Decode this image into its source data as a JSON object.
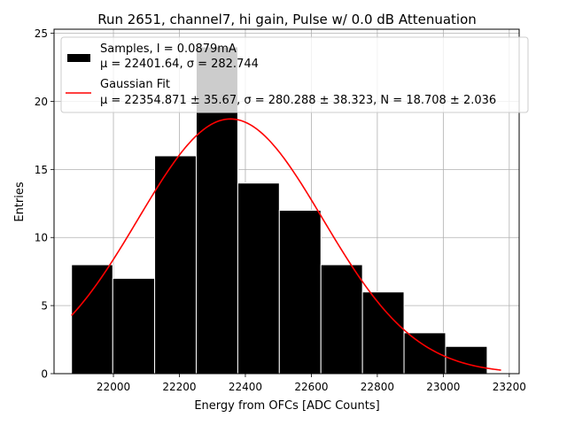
{
  "chart_data": {
    "type": "bar",
    "title": "Run 2651, channel7, hi gain, Pulse w/ 0.0 dB Attenuation",
    "xlabel": "Energy from OFCs [ADC Counts]",
    "ylabel": "Entries",
    "xlim": [
      21820,
      23230
    ],
    "ylim": [
      0,
      25.3
    ],
    "xticks": [
      22000,
      22200,
      22400,
      22600,
      22800,
      23000,
      23200
    ],
    "yticks": [
      0,
      5,
      10,
      15,
      20,
      25
    ],
    "grid": true,
    "legend_position": "top-right",
    "bins": [
      {
        "x0": 21873,
        "x1": 21998,
        "count": 8
      },
      {
        "x0": 21998,
        "x1": 22125,
        "count": 7
      },
      {
        "x0": 22125,
        "x1": 22251,
        "count": 16
      },
      {
        "x0": 22251,
        "x1": 22377,
        "count": 24
      },
      {
        "x0": 22377,
        "x1": 22503,
        "count": 14
      },
      {
        "x0": 22503,
        "x1": 22629,
        "count": 12
      },
      {
        "x0": 22629,
        "x1": 22755,
        "count": 8
      },
      {
        "x0": 22755,
        "x1": 22881,
        "count": 6
      },
      {
        "x0": 22881,
        "x1": 23007,
        "count": 3
      },
      {
        "x0": 23007,
        "x1": 23133,
        "count": 2
      }
    ],
    "fit": {
      "mu": 22354.871,
      "sigma": 280.288,
      "amplitude": 18.708,
      "x_start": 21873,
      "x_end": 23175
    },
    "series": [
      {
        "name": "Samples, I = 0.0879mA",
        "stats": "μ = 22401.64, σ = 282.744",
        "color": "#000000"
      },
      {
        "name": "Gaussian Fit",
        "stats": "μ = 22354.871 ± 35.67, σ = 280.288 ± 38.323, N = 18.708 ± 2.036",
        "color": "#ff0000"
      }
    ]
  }
}
